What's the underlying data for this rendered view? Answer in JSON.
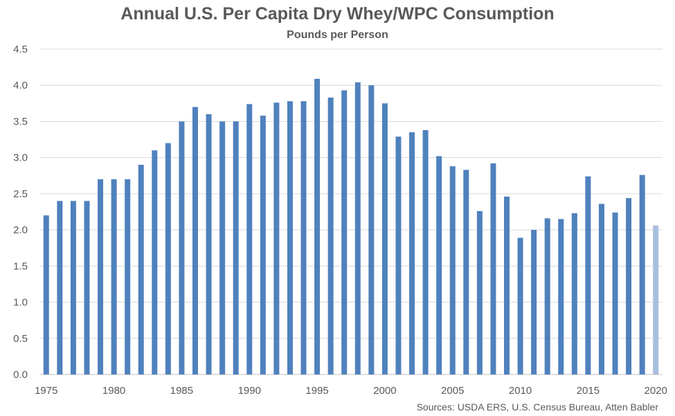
{
  "chart_data": {
    "type": "bar",
    "title": "Annual U.S. Per Capita Dry Whey/WPC Consumption",
    "subtitle": "Pounds per Person",
    "source": "Sources: USDA ERS, U.S. Census Bureau, Atten Babler",
    "categories": [
      1975,
      1976,
      1977,
      1978,
      1979,
      1980,
      1981,
      1982,
      1983,
      1984,
      1985,
      1986,
      1987,
      1988,
      1989,
      1990,
      1991,
      1992,
      1993,
      1994,
      1995,
      1996,
      1997,
      1998,
      1999,
      2000,
      2001,
      2002,
      2003,
      2004,
      2005,
      2006,
      2007,
      2008,
      2009,
      2010,
      2011,
      2012,
      2013,
      2014,
      2015,
      2016,
      2017,
      2018,
      2019,
      2020
    ],
    "values": [
      2.2,
      2.4,
      2.4,
      2.4,
      2.7,
      2.7,
      2.7,
      2.9,
      3.1,
      3.2,
      3.5,
      3.7,
      3.6,
      3.5,
      3.5,
      3.74,
      3.58,
      3.76,
      3.78,
      3.78,
      4.09,
      3.83,
      3.93,
      4.04,
      4.0,
      3.75,
      3.29,
      3.35,
      3.38,
      3.02,
      2.88,
      2.83,
      2.26,
      2.92,
      2.46,
      1.89,
      2.0,
      2.16,
      2.15,
      2.23,
      2.74,
      2.36,
      2.24,
      2.44,
      2.76,
      2.06
    ],
    "highlight_index": 45,
    "bar_color": "#4f81bd",
    "highlight_color": "#a7bfdc",
    "ylim": [
      0,
      4.5
    ],
    "y_ticks": [
      "0.0",
      "0.5",
      "1.0",
      "1.5",
      "2.0",
      "2.5",
      "3.0",
      "3.5",
      "4.0",
      "4.5"
    ],
    "x_tick_labels": [
      "1975",
      "1980",
      "1985",
      "1990",
      "1995",
      "2000",
      "2005",
      "2010",
      "2015",
      "2020"
    ],
    "grid": true,
    "grid_color": "#d9d9d9",
    "xlabel": "",
    "ylabel": ""
  }
}
